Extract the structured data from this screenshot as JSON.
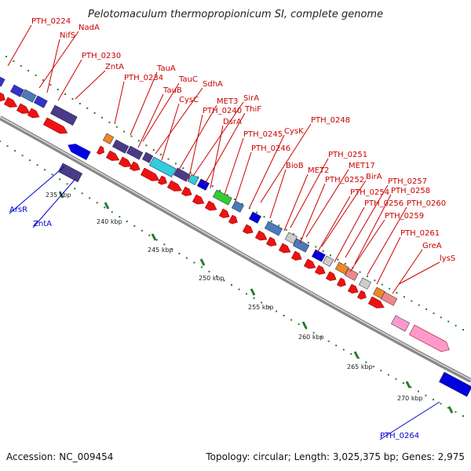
{
  "title": "Pelotomaculum thermopropionicum SI, complete genome",
  "footer": {
    "accession": "Accession: NC_009454",
    "topology": "Topology: circular; Length: 3,025,375 bp; Genes: 2,975"
  },
  "colors": {
    "forward_label": "#cc0000",
    "reverse_label": "#0000cc",
    "backbone": "#999999",
    "tick_marks": "#2a7a2a"
  },
  "scale_labels": [
    "235 kbp",
    "240 kbp",
    "245 kbp",
    "250 kbp",
    "255 kbp",
    "260 kbp",
    "265 kbp",
    "270 kbp"
  ],
  "forward_gene_labels": [
    "PTH_0224",
    "NadA",
    "NifS",
    "PTH_0230",
    "ZntA",
    "PTH_0234",
    "TauA",
    "TauC",
    "TauB",
    "SdhA",
    "CysC",
    "MET3",
    "SirA",
    "PTH_0240",
    "ThiF",
    "DsrA",
    "PTH_0248",
    "CysK",
    "PTH_0245",
    "PTH_0246",
    "PTH_0251",
    "BioB",
    "MET17",
    "MET2",
    "BirA",
    "PTH_0252",
    "PTH_0257",
    "PTH_0254",
    "PTH_0258",
    "PTH_0256",
    "PTH_0260",
    "PTH_0259",
    "PTH_0261",
    "GreA",
    "lysS"
  ],
  "reverse_gene_labels": [
    "ArsR",
    "ZntA",
    "PTH_0264"
  ]
}
